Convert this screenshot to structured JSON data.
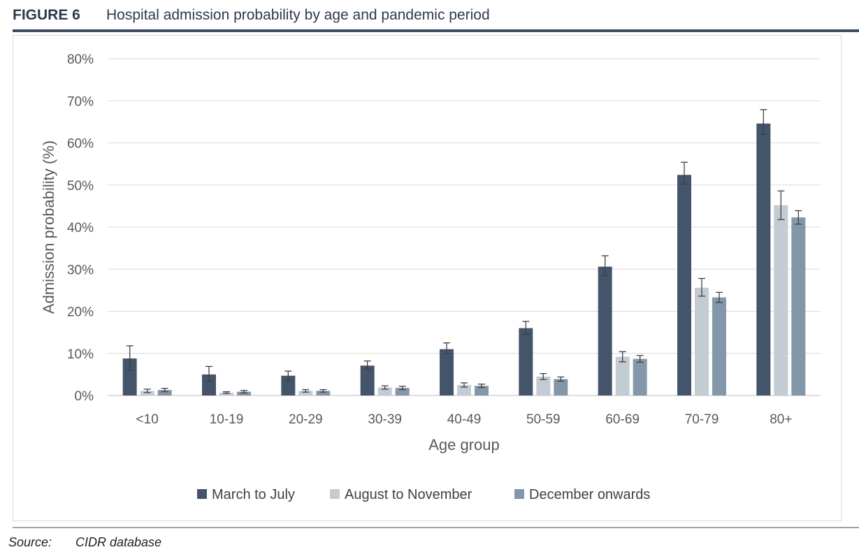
{
  "figure": {
    "label": "FIGURE 6",
    "title": "Hospital admission probability by age and pandemic period"
  },
  "source": {
    "label": "Source:",
    "value": "CIDR database"
  },
  "chart_data": {
    "type": "bar",
    "title": "",
    "xlabel": "Age group",
    "ylabel": "Admission probability (%)",
    "ylim": [
      0,
      80
    ],
    "yticks": [
      "0%",
      "10%",
      "20%",
      "30%",
      "40%",
      "50%",
      "60%",
      "70%",
      "80%"
    ],
    "grid": true,
    "legend_position": "bottom",
    "error_bars": true,
    "categories": [
      "<10",
      "10-19",
      "20-29",
      "30-39",
      "40-49",
      "50-59",
      "60-69",
      "70-79",
      "80+"
    ],
    "series": [
      {
        "name": "March to July",
        "color": "#44546a",
        "values": [
          8.8,
          5.0,
          4.7,
          7.1,
          11.0,
          16.0,
          30.6,
          52.4,
          64.6
        ],
        "error_low": [
          6.0,
          3.3,
          3.6,
          6.2,
          9.9,
          14.5,
          28.5,
          50.2,
          62.0
        ],
        "error_high": [
          11.8,
          6.9,
          5.8,
          8.2,
          12.5,
          17.6,
          33.2,
          55.4,
          67.9
        ]
      },
      {
        "name": "August to November",
        "color": "#c3cbd3",
        "values": [
          1.1,
          0.7,
          1.1,
          1.9,
          2.5,
          4.5,
          9.2,
          25.6,
          45.2
        ],
        "error_low": [
          0.7,
          0.5,
          0.8,
          1.5,
          2.0,
          3.8,
          8.0,
          23.6,
          41.8
        ],
        "error_high": [
          1.5,
          0.9,
          1.4,
          2.3,
          3.0,
          5.2,
          10.4,
          27.8,
          48.6
        ]
      },
      {
        "name": "December onwards",
        "color": "#8497a9",
        "values": [
          1.3,
          0.9,
          1.1,
          1.8,
          2.3,
          3.9,
          8.7,
          23.3,
          42.3
        ],
        "error_low": [
          0.9,
          0.6,
          0.8,
          1.4,
          1.9,
          3.4,
          7.9,
          22.1,
          40.7
        ],
        "error_high": [
          1.7,
          1.2,
          1.4,
          2.2,
          2.7,
          4.4,
          9.5,
          24.5,
          43.9
        ]
      }
    ]
  }
}
